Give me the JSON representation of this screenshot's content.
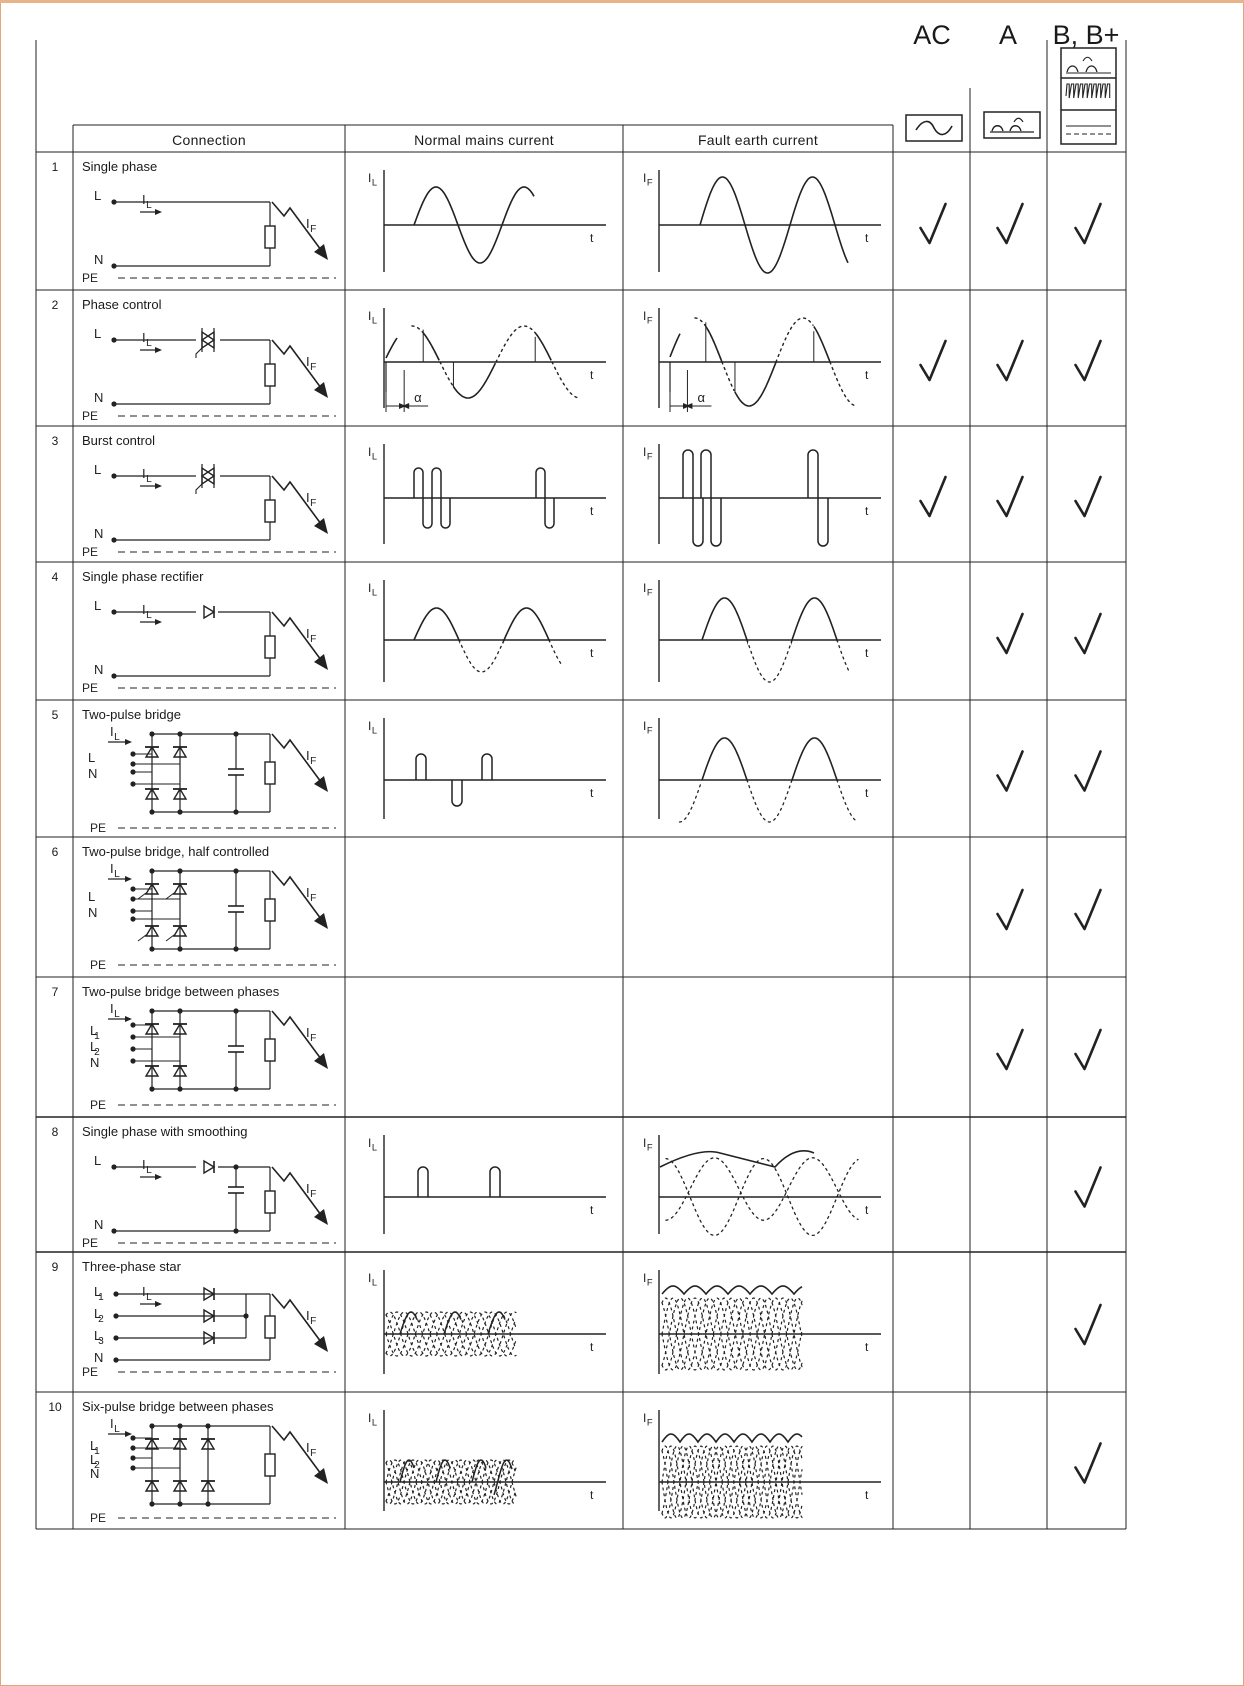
{
  "types": [
    "AC",
    "A",
    "B, B+"
  ],
  "columns": [
    "Connection",
    "Normal mains current",
    "Fault earth current"
  ],
  "rows": [
    {
      "num": "1",
      "title": "Single phase",
      "ac": true,
      "a": true,
      "b": true
    },
    {
      "num": "2",
      "title": "Phase control",
      "ac": true,
      "a": true,
      "b": true
    },
    {
      "num": "3",
      "title": "Burst control",
      "ac": true,
      "a": true,
      "b": true
    },
    {
      "num": "4",
      "title": "Single phase rectifier",
      "ac": false,
      "a": true,
      "b": true
    },
    {
      "num": "5",
      "title": "Two-pulse bridge",
      "ac": false,
      "a": true,
      "b": true
    },
    {
      "num": "6",
      "title": "Two-pulse bridge, half controlled",
      "ac": false,
      "a": true,
      "b": true
    },
    {
      "num": "7",
      "title": "Two-pulse bridge between phases",
      "ac": false,
      "a": true,
      "b": true
    },
    {
      "num": "8",
      "title": "Single phase with smoothing",
      "ac": false,
      "a": false,
      "b": true
    },
    {
      "num": "9",
      "title": "Three-phase star",
      "ac": false,
      "a": false,
      "b": true
    },
    {
      "num": "10",
      "title": "Six-pulse bridge between phases",
      "ac": false,
      "a": false,
      "b": true
    }
  ],
  "labels": {
    "L": "L",
    "N": "N",
    "PE": "PE",
    "IL": "I",
    "IL_sub": "L",
    "IF": "I",
    "IF_sub": "F",
    "L1": "L",
    "L1_sub": "1",
    "L2": "L",
    "L2_sub": "2",
    "L3": "L",
    "L3_sub": "3",
    "t": "t",
    "alpha": "α"
  },
  "checkmark": "✓"
}
